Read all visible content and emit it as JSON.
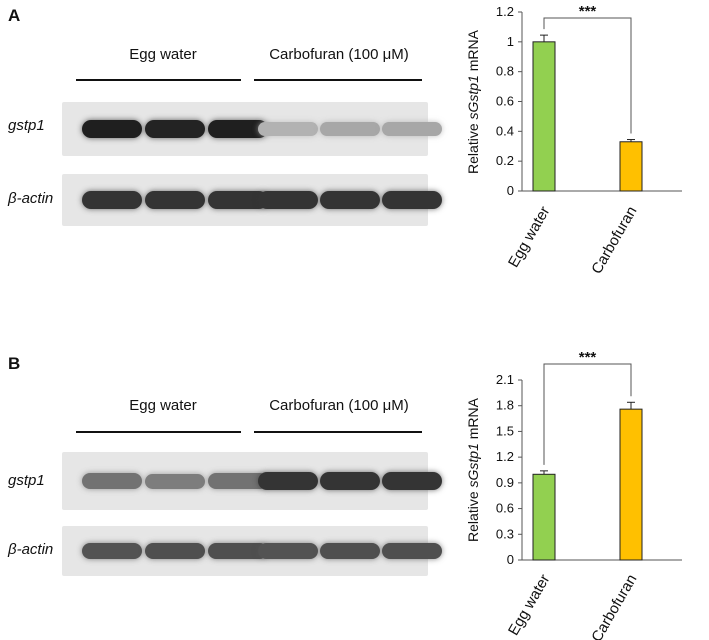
{
  "panels": [
    {
      "letter": "A",
      "groups": [
        "Egg water",
        "Carbofuran (100 μM)"
      ],
      "genes": [
        {
          "name": "gstp1",
          "band_intensity": [
            0.95,
            0.93,
            0.95,
            0.25,
            0.3,
            0.3
          ]
        },
        {
          "name": "β-actin",
          "band_intensity": [
            0.85,
            0.85,
            0.85,
            0.85,
            0.85,
            0.85
          ]
        }
      ]
    },
    {
      "letter": "B",
      "groups": [
        "Egg water",
        "Carbofuran (100 μM)"
      ],
      "genes": [
        {
          "name": "gstp1",
          "band_intensity": [
            0.55,
            0.5,
            0.55,
            0.85,
            0.85,
            0.85
          ]
        },
        {
          "name": "β-actin",
          "band_intensity": [
            0.7,
            0.72,
            0.72,
            0.7,
            0.72,
            0.72
          ]
        }
      ]
    }
  ],
  "chart_data": [
    {
      "type": "bar",
      "categories": [
        "Egg water",
        "Carbofuran"
      ],
      "values": [
        1.0,
        0.33
      ],
      "errors": [
        0.045,
        0.015
      ],
      "colors": [
        "#92d050",
        "#ffc000"
      ],
      "ylabel_pre": "Relative ",
      "ylabel_italic": "sGstp1",
      "ylabel_post": " mRNA",
      "ylim": [
        0,
        1.2
      ],
      "yticks": [
        "0",
        "0.2",
        "0.4",
        "0.6",
        "0.8",
        "1",
        "1.2"
      ],
      "significance": "***"
    },
    {
      "type": "bar",
      "categories": [
        "Egg water",
        "Carbofuran"
      ],
      "values": [
        1.0,
        1.76
      ],
      "errors": [
        0.04,
        0.08
      ],
      "colors": [
        "#92d050",
        "#ffc000"
      ],
      "ylabel_pre": "Relative ",
      "ylabel_italic": "sGstp1",
      "ylabel_post": " mRNA",
      "ylim": [
        0,
        2.1
      ],
      "yticks": [
        "0",
        "0.3",
        "0.6",
        "0.9",
        "1.2",
        "1.5",
        "1.8",
        "2.1"
      ],
      "significance": "***"
    }
  ]
}
